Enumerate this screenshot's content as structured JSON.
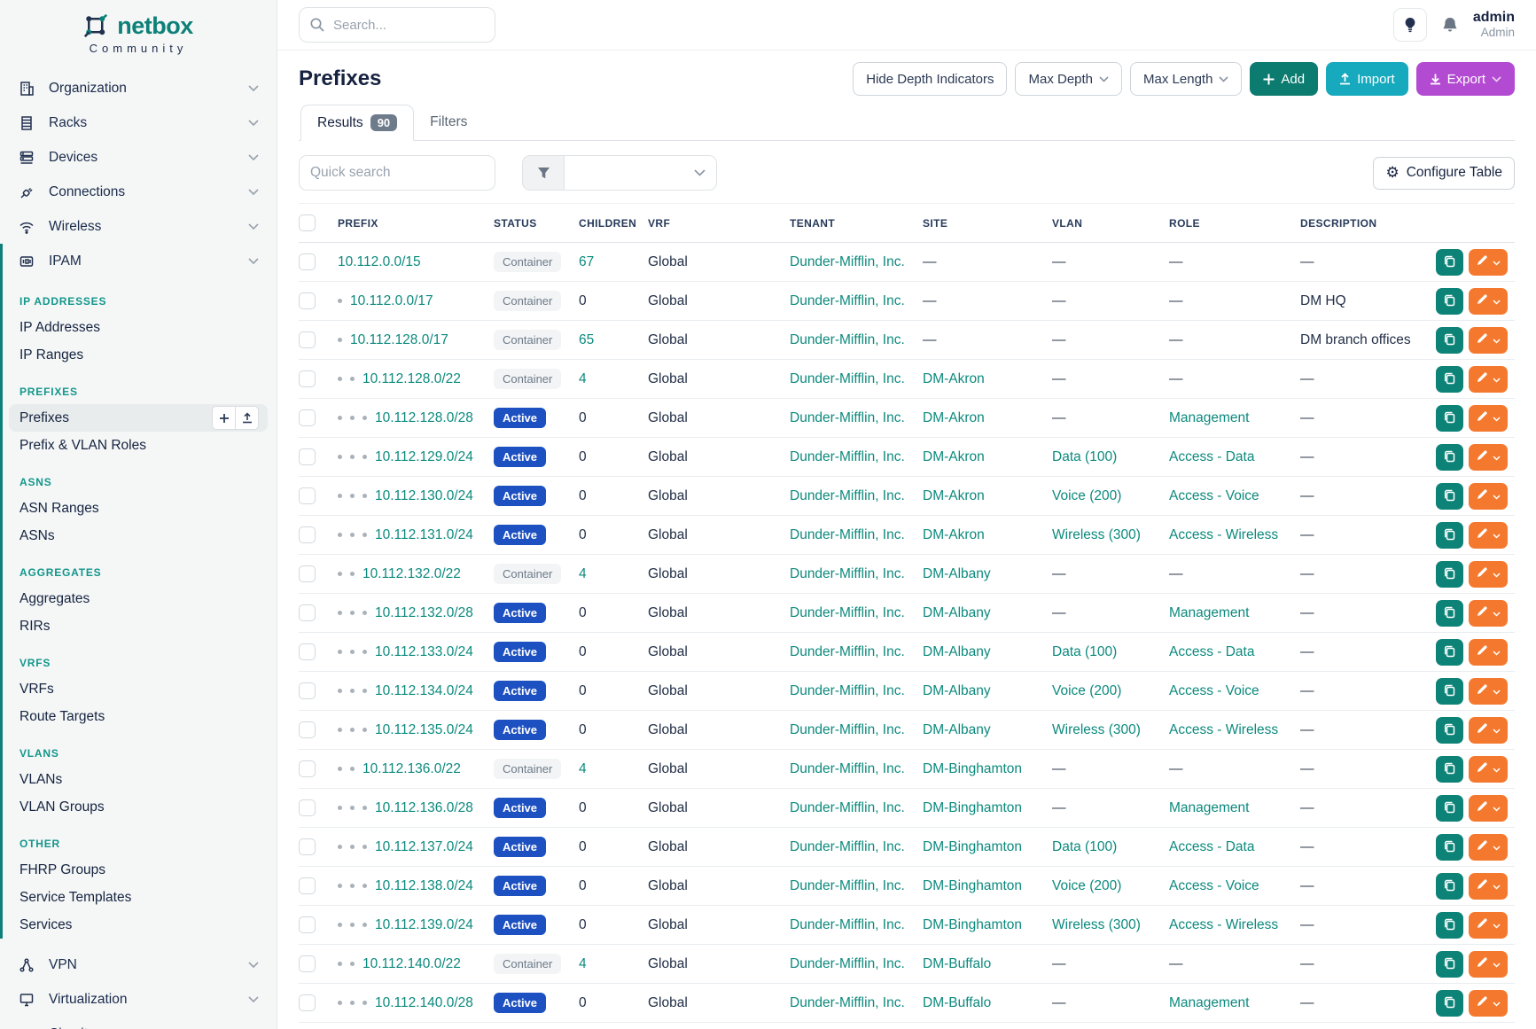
{
  "brand": {
    "name": "netbox",
    "subtitle": "Community"
  },
  "topbar": {
    "search_placeholder": "Search...",
    "username": "admin",
    "user_role": "Admin"
  },
  "sidebar": {
    "top_items": [
      {
        "label": "Organization",
        "icon": "building-icon"
      },
      {
        "label": "Racks",
        "icon": "rack-icon"
      },
      {
        "label": "Devices",
        "icon": "server-icon"
      },
      {
        "label": "Connections",
        "icon": "plug-icon"
      },
      {
        "label": "Wireless",
        "icon": "wifi-icon"
      }
    ],
    "ipam_item": {
      "label": "IPAM",
      "icon": "ipam-icon"
    },
    "ipam_sections": [
      {
        "header": "IP ADDRESSES",
        "items": [
          "IP Addresses",
          "IP Ranges"
        ]
      },
      {
        "header": "PREFIXES",
        "items": [
          "Prefixes",
          "Prefix & VLAN Roles"
        ],
        "active_item": "Prefixes"
      },
      {
        "header": "ASNS",
        "items": [
          "ASN Ranges",
          "ASNs"
        ]
      },
      {
        "header": "AGGREGATES",
        "items": [
          "Aggregates",
          "RIRs"
        ]
      },
      {
        "header": "VRFS",
        "items": [
          "VRFs",
          "Route Targets"
        ]
      },
      {
        "header": "VLANS",
        "items": [
          "VLANs",
          "VLAN Groups"
        ]
      },
      {
        "header": "OTHER",
        "items": [
          "FHRP Groups",
          "Service Templates",
          "Services"
        ]
      }
    ],
    "bottom_items": [
      {
        "label": "VPN",
        "icon": "vpn-icon"
      },
      {
        "label": "Virtualization",
        "icon": "monitor-icon"
      },
      {
        "label": "Circuits",
        "icon": "circuit-icon"
      }
    ]
  },
  "page": {
    "title": "Prefixes",
    "hide_depth_label": "Hide Depth Indicators",
    "max_depth_label": "Max Depth",
    "max_length_label": "Max Length",
    "add_label": "Add",
    "import_label": "Import",
    "export_label": "Export",
    "tabs": {
      "results_label": "Results",
      "results_count": "90",
      "filters_label": "Filters"
    },
    "quick_search_placeholder": "Quick search",
    "configure_table_label": "Configure Table"
  },
  "table": {
    "columns": [
      "PREFIX",
      "STATUS",
      "CHILDREN",
      "VRF",
      "TENANT",
      "SITE",
      "VLAN",
      "ROLE",
      "DESCRIPTION"
    ],
    "rows": [
      {
        "prefix": "10.112.0.0/15",
        "depth": 0,
        "status": "Container",
        "children": "67",
        "vrf": "Global",
        "tenant": "Dunder-Mifflin, Inc.",
        "site": "—",
        "vlan": "—",
        "role": "—",
        "description": "—"
      },
      {
        "prefix": "10.112.0.0/17",
        "depth": 1,
        "status": "Container",
        "children": "0",
        "vrf": "Global",
        "tenant": "Dunder-Mifflin, Inc.",
        "site": "—",
        "vlan": "—",
        "role": "—",
        "description": "DM HQ"
      },
      {
        "prefix": "10.112.128.0/17",
        "depth": 1,
        "status": "Container",
        "children": "65",
        "vrf": "Global",
        "tenant": "Dunder-Mifflin, Inc.",
        "site": "—",
        "vlan": "—",
        "role": "—",
        "description": "DM branch offices"
      },
      {
        "prefix": "10.112.128.0/22",
        "depth": 2,
        "status": "Container",
        "children": "4",
        "vrf": "Global",
        "tenant": "Dunder-Mifflin, Inc.",
        "site": "DM-Akron",
        "vlan": "—",
        "role": "—",
        "description": "—"
      },
      {
        "prefix": "10.112.128.0/28",
        "depth": 3,
        "status": "Active",
        "children": "0",
        "vrf": "Global",
        "tenant": "Dunder-Mifflin, Inc.",
        "site": "DM-Akron",
        "vlan": "—",
        "role": "Management",
        "description": "—"
      },
      {
        "prefix": "10.112.129.0/24",
        "depth": 3,
        "status": "Active",
        "children": "0",
        "vrf": "Global",
        "tenant": "Dunder-Mifflin, Inc.",
        "site": "DM-Akron",
        "vlan": "Data (100)",
        "role": "Access - Data",
        "description": "—"
      },
      {
        "prefix": "10.112.130.0/24",
        "depth": 3,
        "status": "Active",
        "children": "0",
        "vrf": "Global",
        "tenant": "Dunder-Mifflin, Inc.",
        "site": "DM-Akron",
        "vlan": "Voice (200)",
        "role": "Access - Voice",
        "description": "—"
      },
      {
        "prefix": "10.112.131.0/24",
        "depth": 3,
        "status": "Active",
        "children": "0",
        "vrf": "Global",
        "tenant": "Dunder-Mifflin, Inc.",
        "site": "DM-Akron",
        "vlan": "Wireless (300)",
        "role": "Access - Wireless",
        "description": "—"
      },
      {
        "prefix": "10.112.132.0/22",
        "depth": 2,
        "status": "Container",
        "children": "4",
        "vrf": "Global",
        "tenant": "Dunder-Mifflin, Inc.",
        "site": "DM-Albany",
        "vlan": "—",
        "role": "—",
        "description": "—"
      },
      {
        "prefix": "10.112.132.0/28",
        "depth": 3,
        "status": "Active",
        "children": "0",
        "vrf": "Global",
        "tenant": "Dunder-Mifflin, Inc.",
        "site": "DM-Albany",
        "vlan": "—",
        "role": "Management",
        "description": "—"
      },
      {
        "prefix": "10.112.133.0/24",
        "depth": 3,
        "status": "Active",
        "children": "0",
        "vrf": "Global",
        "tenant": "Dunder-Mifflin, Inc.",
        "site": "DM-Albany",
        "vlan": "Data (100)",
        "role": "Access - Data",
        "description": "—"
      },
      {
        "prefix": "10.112.134.0/24",
        "depth": 3,
        "status": "Active",
        "children": "0",
        "vrf": "Global",
        "tenant": "Dunder-Mifflin, Inc.",
        "site": "DM-Albany",
        "vlan": "Voice (200)",
        "role": "Access - Voice",
        "description": "—"
      },
      {
        "prefix": "10.112.135.0/24",
        "depth": 3,
        "status": "Active",
        "children": "0",
        "vrf": "Global",
        "tenant": "Dunder-Mifflin, Inc.",
        "site": "DM-Albany",
        "vlan": "Wireless (300)",
        "role": "Access - Wireless",
        "description": "—"
      },
      {
        "prefix": "10.112.136.0/22",
        "depth": 2,
        "status": "Container",
        "children": "4",
        "vrf": "Global",
        "tenant": "Dunder-Mifflin, Inc.",
        "site": "DM-Binghamton",
        "vlan": "—",
        "role": "—",
        "description": "—"
      },
      {
        "prefix": "10.112.136.0/28",
        "depth": 3,
        "status": "Active",
        "children": "0",
        "vrf": "Global",
        "tenant": "Dunder-Mifflin, Inc.",
        "site": "DM-Binghamton",
        "vlan": "—",
        "role": "Management",
        "description": "—"
      },
      {
        "prefix": "10.112.137.0/24",
        "depth": 3,
        "status": "Active",
        "children": "0",
        "vrf": "Global",
        "tenant": "Dunder-Mifflin, Inc.",
        "site": "DM-Binghamton",
        "vlan": "Data (100)",
        "role": "Access - Data",
        "description": "—"
      },
      {
        "prefix": "10.112.138.0/24",
        "depth": 3,
        "status": "Active",
        "children": "0",
        "vrf": "Global",
        "tenant": "Dunder-Mifflin, Inc.",
        "site": "DM-Binghamton",
        "vlan": "Voice (200)",
        "role": "Access - Voice",
        "description": "—"
      },
      {
        "prefix": "10.112.139.0/24",
        "depth": 3,
        "status": "Active",
        "children": "0",
        "vrf": "Global",
        "tenant": "Dunder-Mifflin, Inc.",
        "site": "DM-Binghamton",
        "vlan": "Wireless (300)",
        "role": "Access - Wireless",
        "description": "—"
      },
      {
        "prefix": "10.112.140.0/22",
        "depth": 2,
        "status": "Container",
        "children": "4",
        "vrf": "Global",
        "tenant": "Dunder-Mifflin, Inc.",
        "site": "DM-Buffalo",
        "vlan": "—",
        "role": "—",
        "description": "—"
      },
      {
        "prefix": "10.112.140.0/28",
        "depth": 3,
        "status": "Active",
        "children": "0",
        "vrf": "Global",
        "tenant": "Dunder-Mifflin, Inc.",
        "site": "DM-Buffalo",
        "vlan": "—",
        "role": "Management",
        "description": "—"
      }
    ]
  },
  "colors": {
    "accent_teal": "#0d8078",
    "link_teal": "#0d8a7e",
    "active_badge_blue": "#1d50c0",
    "container_badge_bg": "#f2f4f6",
    "add_button": "#0c7b70",
    "import_button": "#17a9bd",
    "export_button": "#b34bd2",
    "edit_button_orange": "#f4792e"
  }
}
